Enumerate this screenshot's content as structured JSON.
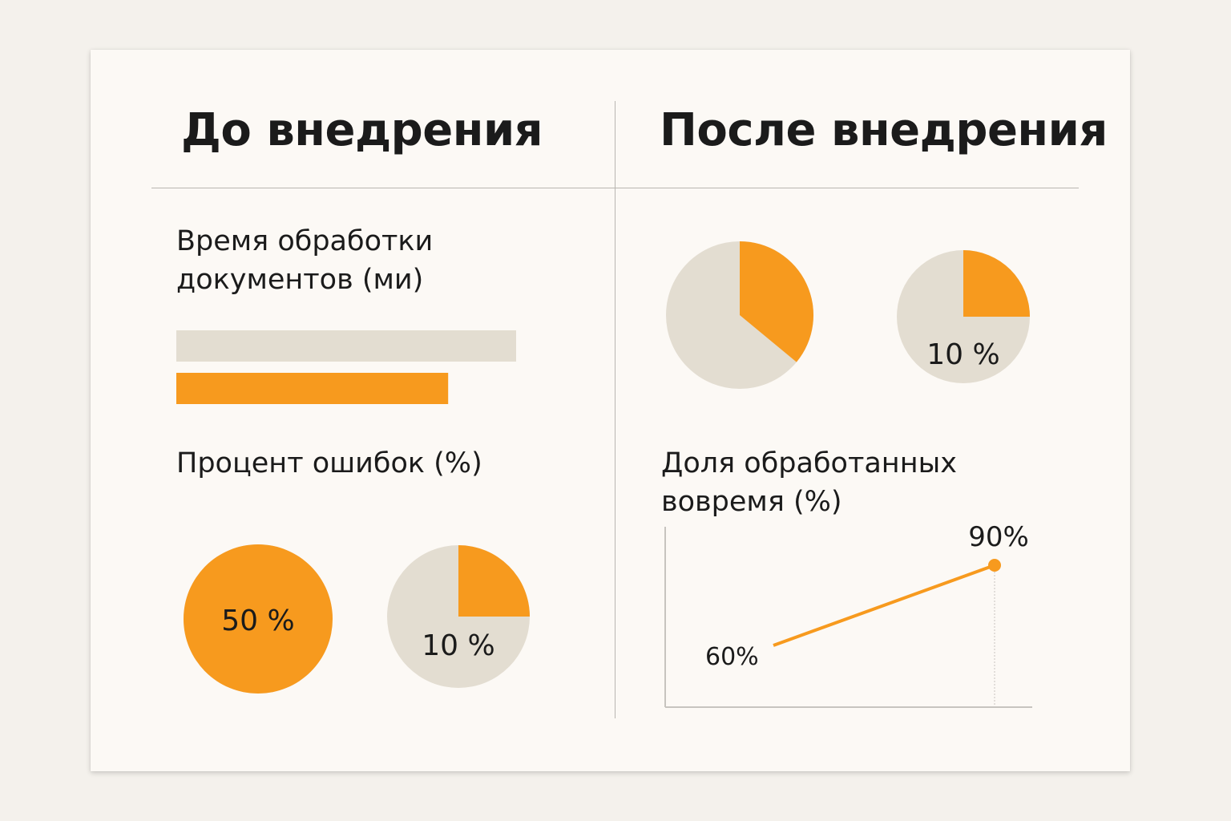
{
  "panels": {
    "before": {
      "title": "До внедрения"
    },
    "after": {
      "title": "После внедрения"
    }
  },
  "colors": {
    "accent": "#f79a1e",
    "neutral": "#e3ddd1",
    "axis": "#c7c4bf",
    "text": "#1b1b1b"
  },
  "chart_data": [
    {
      "type": "bar",
      "title": "Время обработки документов (ми)",
      "orientation": "horizontal",
      "series": [
        {
          "values": [
            100
          ],
          "color": "#e3ddd1"
        },
        {
          "values": [
            80
          ],
          "color": "#f79a1e"
        }
      ]
    },
    {
      "type": "pie",
      "title": "Процент ошибок (%)",
      "pies": [
        {
          "accent_share": 1.0,
          "label": "50 %"
        },
        {
          "accent_share": 0.25,
          "label": "10 %"
        }
      ]
    },
    {
      "type": "pie",
      "title": "",
      "pies": [
        {
          "accent_share": 0.36,
          "label": ""
        },
        {
          "accent_share": 0.25,
          "label": "10 %"
        }
      ]
    },
    {
      "type": "line",
      "title": "Доля обработанных вовремя (%)",
      "x": [
        0,
        1
      ],
      "y": [
        60,
        90
      ],
      "point_labels": [
        "60%",
        "90%"
      ],
      "ylim": [
        40,
        100
      ],
      "grid": false
    }
  ]
}
